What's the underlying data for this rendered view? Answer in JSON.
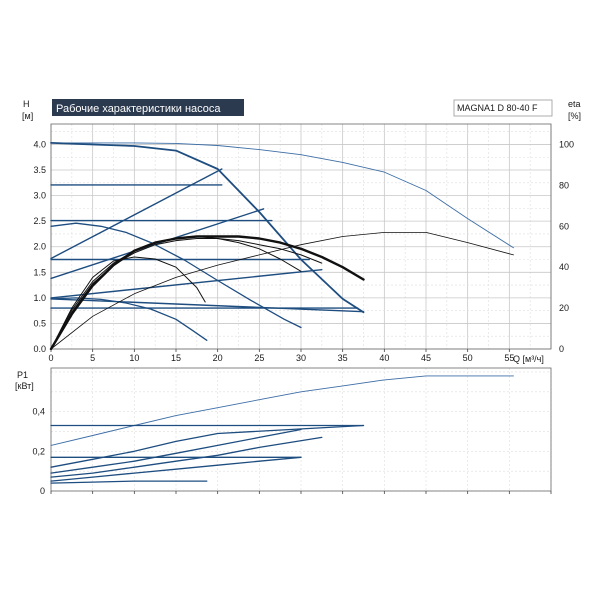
{
  "chart_data": [
    {
      "type": "line",
      "title": "Рабочие характеристики насоса",
      "model": "MAGNA1 D 80-40 F",
      "y_axis_label": "H",
      "y_axis_unit": "[м]",
      "y2_axis_label": "eta",
      "y2_axis_unit": "[%]",
      "x_axis_label": "Q [м³/ч]",
      "xlim": [
        0,
        60
      ],
      "ylim": [
        0,
        4.4
      ],
      "y2lim": [
        0,
        110
      ],
      "grid": true,
      "x_ticks": [
        "0",
        "5",
        "10",
        "15",
        "20",
        "25",
        "30",
        "35",
        "40",
        "45",
        "50",
        "55"
      ],
      "y_ticks": [
        "0.0",
        "0.5",
        "1.0",
        "1.5",
        "2.0",
        "2.5",
        "3.0",
        "3.5",
        "4.0"
      ],
      "y2_ticks": [
        "0",
        "20",
        "40",
        "60",
        "80",
        "100"
      ],
      "head_curves": [
        {
          "x": [
            0,
            5,
            10,
            15,
            20,
            25,
            30,
            35,
            37.5
          ],
          "y": [
            4.03,
            4.0,
            3.97,
            3.88,
            3.52,
            2.68,
            1.75,
            0.98,
            0.72
          ]
        },
        {
          "x": [
            0,
            3,
            6,
            9,
            12,
            16,
            20,
            24,
            28,
            30
          ],
          "y": [
            2.4,
            2.46,
            2.4,
            2.28,
            2.08,
            1.74,
            1.34,
            0.95,
            0.58,
            0.42
          ]
        },
        {
          "x": [
            0,
            3,
            6,
            9,
            12,
            15,
            17,
            18.7
          ],
          "y": [
            0.98,
            1.0,
            0.97,
            0.9,
            0.78,
            0.58,
            0.36,
            0.17
          ]
        }
      ],
      "max_curve": {
        "x": [
          0,
          5,
          10,
          15,
          20,
          25,
          30,
          35,
          40,
          45,
          50,
          55.5
        ],
        "y": [
          4.03,
          4.03,
          4.03,
          4.02,
          3.98,
          3.9,
          3.8,
          3.65,
          3.46,
          3.1,
          2.55,
          1.98
        ]
      },
      "const_pressure": [
        {
          "x": [
            0,
            20.5
          ],
          "y": [
            3.21,
            3.21
          ]
        },
        {
          "x": [
            0,
            26.5
          ],
          "y": [
            2.51,
            2.51
          ]
        },
        {
          "x": [
            0,
            31
          ],
          "y": [
            1.75,
            1.75
          ]
        },
        {
          "x": [
            0,
            36.8
          ],
          "y": [
            0.8,
            0.8
          ]
        }
      ],
      "prop_pressure": [
        {
          "x": [
            0,
            20.5
          ],
          "y": [
            1.77,
            3.52
          ]
        },
        {
          "x": [
            0,
            25.5
          ],
          "y": [
            1.38,
            2.74
          ]
        },
        {
          "x": [
            0,
            32.5
          ],
          "y": [
            1.0,
            1.55
          ]
        },
        {
          "x": [
            0,
            37.5
          ],
          "y": [
            0.98,
            0.73
          ]
        }
      ],
      "efficiency_curves": [
        {
          "x": [
            0,
            2.5,
            5,
            7.5,
            10,
            12.5,
            15,
            17.5,
            20,
            22.5,
            25,
            27.5,
            30,
            32.5,
            35,
            37.5
          ],
          "y": [
            0,
            17,
            31,
            41,
            48,
            52,
            54,
            55,
            55,
            55,
            54,
            52,
            49,
            45,
            40,
            34
          ]
        },
        {
          "x": [
            0,
            2.5,
            5,
            7.5,
            10,
            12.5,
            15,
            17.5,
            20,
            22.5,
            25,
            27.5,
            30,
            32.5
          ],
          "y": [
            0,
            18,
            32,
            41,
            47,
            51,
            53,
            54,
            54,
            53,
            51,
            49,
            46,
            42
          ]
        },
        {
          "x": [
            0,
            2.5,
            5,
            7.5,
            10,
            12.5,
            15,
            17.5,
            20,
            22.5,
            25,
            27.5,
            30
          ],
          "y": [
            0,
            19,
            33,
            42,
            48,
            52,
            54,
            55,
            54,
            52,
            49,
            44,
            38
          ]
        },
        {
          "x": [
            0,
            2.5,
            5,
            7.5,
            10,
            12.5,
            15,
            17.5,
            18.5
          ],
          "y": [
            0,
            20,
            35,
            43,
            45,
            44,
            40,
            30,
            23
          ]
        },
        {
          "x": [
            0,
            5,
            10,
            15,
            20,
            25,
            30,
            35,
            40,
            45,
            50,
            55.5
          ],
          "y": [
            0,
            16,
            27,
            35,
            41,
            46,
            51,
            55,
            57,
            57,
            52,
            46
          ]
        }
      ]
    },
    {
      "type": "line",
      "y_axis_label": "P1",
      "y_axis_unit": "[кВт]",
      "xlim": [
        0,
        60
      ],
      "ylim": [
        0,
        0.62
      ],
      "grid": true,
      "y_ticks": [
        "0",
        "0,2",
        "0,4"
      ],
      "power_curves": [
        {
          "x": [
            0,
            5,
            10,
            15,
            20,
            25,
            30,
            35,
            40,
            45,
            55.5
          ],
          "y": [
            0.23,
            0.28,
            0.33,
            0.38,
            0.42,
            0.46,
            0.5,
            0.53,
            0.56,
            0.58,
            0.58
          ]
        },
        {
          "x": [
            0,
            5,
            10,
            15,
            20,
            37.5
          ],
          "y": [
            0.12,
            0.16,
            0.2,
            0.25,
            0.29,
            0.33
          ]
        },
        {
          "x": [
            0,
            5,
            10,
            15,
            20,
            25,
            30
          ],
          "y": [
            0.09,
            0.12,
            0.15,
            0.19,
            0.23,
            0.27,
            0.31
          ]
        },
        {
          "x": [
            0,
            5,
            10,
            15,
            20,
            25,
            32.5
          ],
          "y": [
            0.07,
            0.09,
            0.12,
            0.15,
            0.18,
            0.22,
            0.27
          ]
        },
        {
          "x": [
            0,
            5,
            10,
            15,
            20,
            25,
            30
          ],
          "y": [
            0.05,
            0.07,
            0.09,
            0.11,
            0.13,
            0.15,
            0.17
          ]
        },
        {
          "x": [
            0,
            5,
            10,
            15,
            18.7
          ],
          "y": [
            0.04,
            0.045,
            0.05,
            0.05,
            0.05
          ]
        },
        {
          "x": [
            0,
            37.5
          ],
          "y": [
            0.33,
            0.33
          ]
        },
        {
          "x": [
            0,
            30
          ],
          "y": [
            0.17,
            0.17
          ]
        }
      ]
    }
  ]
}
